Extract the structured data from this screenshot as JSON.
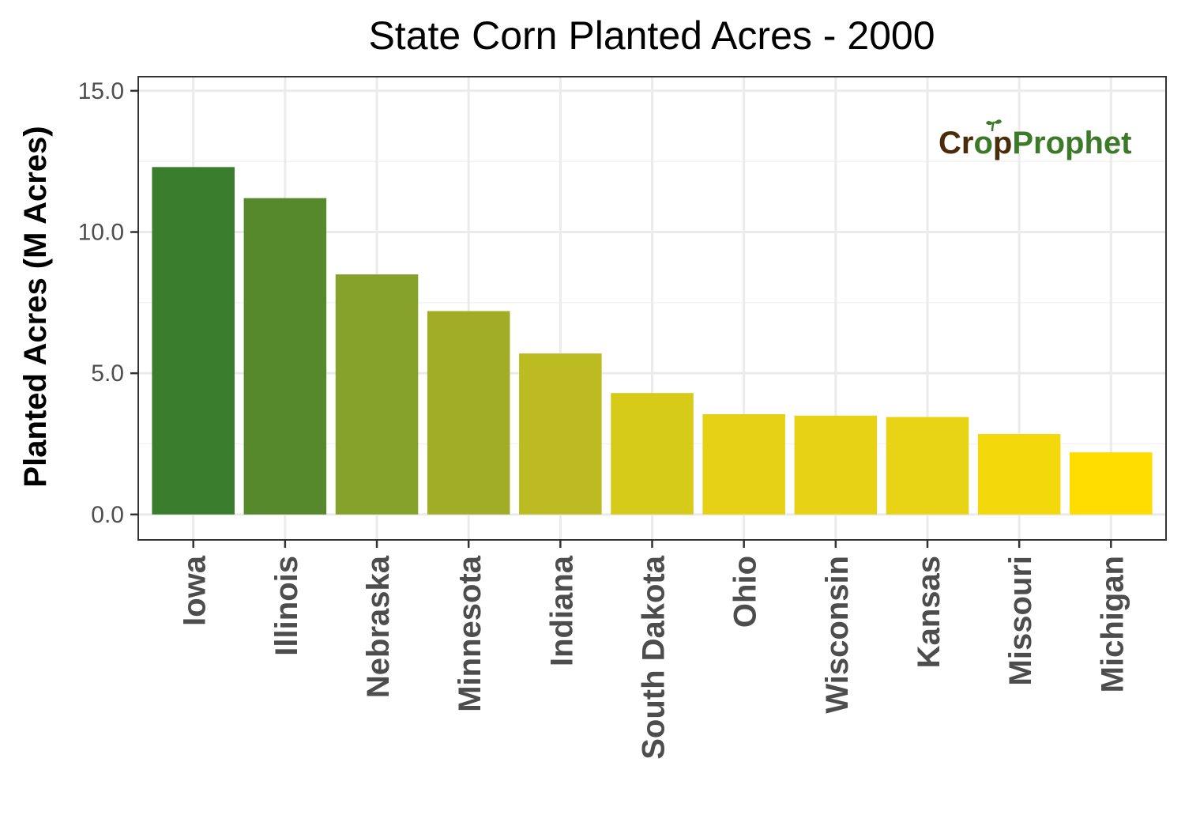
{
  "chart_data": {
    "type": "bar",
    "title": "State Corn Planted Acres - 2000",
    "xlabel": "",
    "ylabel": "Planted Acres (M Acres)",
    "categories": [
      "Iowa",
      "Illinois",
      "Nebraska",
      "Minnesota",
      "Indiana",
      "South Dakota",
      "Ohio",
      "Wisconsin",
      "Kansas",
      "Missouri",
      "Michigan"
    ],
    "values": [
      12.3,
      11.2,
      8.5,
      7.2,
      5.7,
      4.3,
      3.55,
      3.5,
      3.45,
      2.85,
      2.2
    ],
    "colors": [
      "#3a7d2c",
      "#55892b",
      "#87a22a",
      "#a2ad27",
      "#bcbc22",
      "#d7cb1a",
      "#e6d116",
      "#e7d215",
      "#e8d314",
      "#f3d80c",
      "#ffdd00"
    ],
    "ylim": [
      -0.9,
      15.5
    ],
    "yticks": [
      0,
      5,
      10,
      15
    ],
    "ytick_labels": [
      "0.0",
      "5.0",
      "10.0",
      "15.0"
    ],
    "grid": true,
    "legend": "none"
  },
  "logo": {
    "part1": "Cr",
    "part2": "o",
    "part3": "p",
    "part4": "Prophet",
    "color_brown": "#4a2c0a",
    "color_green": "#3c7a2a"
  }
}
